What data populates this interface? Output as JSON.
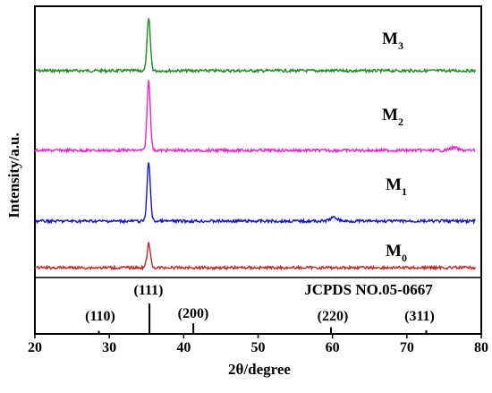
{
  "chart_data": {
    "type": "line",
    "xlabel": "2θ/degree",
    "ylabel": "Intensity/a.u.",
    "xlim": [
      20,
      80
    ],
    "x_ticks": [
      "20",
      "30",
      "40",
      "50",
      "60",
      "70",
      "80"
    ],
    "x_tick_values": [
      20,
      30,
      40,
      50,
      60,
      70,
      80
    ],
    "grid": false,
    "y_tick_labels": "none",
    "series": [
      {
        "name": "M3",
        "name_main": "M",
        "name_sub": "3",
        "color": "#1a8a1a",
        "peaks": [
          {
            "x": 35.3,
            "height": 58
          }
        ]
      },
      {
        "name": "M2",
        "name_main": "M",
        "name_sub": "2",
        "color": "#ee22cc",
        "peaks": [
          {
            "x": 35.3,
            "height": 78
          },
          {
            "x": 76.3,
            "height": 3
          }
        ]
      },
      {
        "name": "M1",
        "name_main": "M",
        "name_sub": "1",
        "color": "#1111dd",
        "peaks": [
          {
            "x": 35.3,
            "height": 66
          },
          {
            "x": 60.2,
            "height": 4
          }
        ]
      },
      {
        "name": "M0",
        "name_main": "M",
        "name_sub": "0",
        "color": "#c0282a",
        "peaks": [
          {
            "x": 35.3,
            "height": 27
          }
        ]
      }
    ],
    "reference": {
      "label": "JCPDS NO.05-0667",
      "lines": [
        {
          "hkl": "(110)",
          "x": 28.6,
          "intensity": 0.1
        },
        {
          "hkl": "(111)",
          "x": 35.4,
          "intensity": 1.0
        },
        {
          "hkl": "(200)",
          "x": 41.3,
          "intensity": 0.35
        },
        {
          "hkl": "(220)",
          "x": 59.8,
          "intensity": 0.22
        },
        {
          "hkl": "(311)",
          "x": 72.6,
          "intensity": 0.12
        }
      ]
    }
  }
}
